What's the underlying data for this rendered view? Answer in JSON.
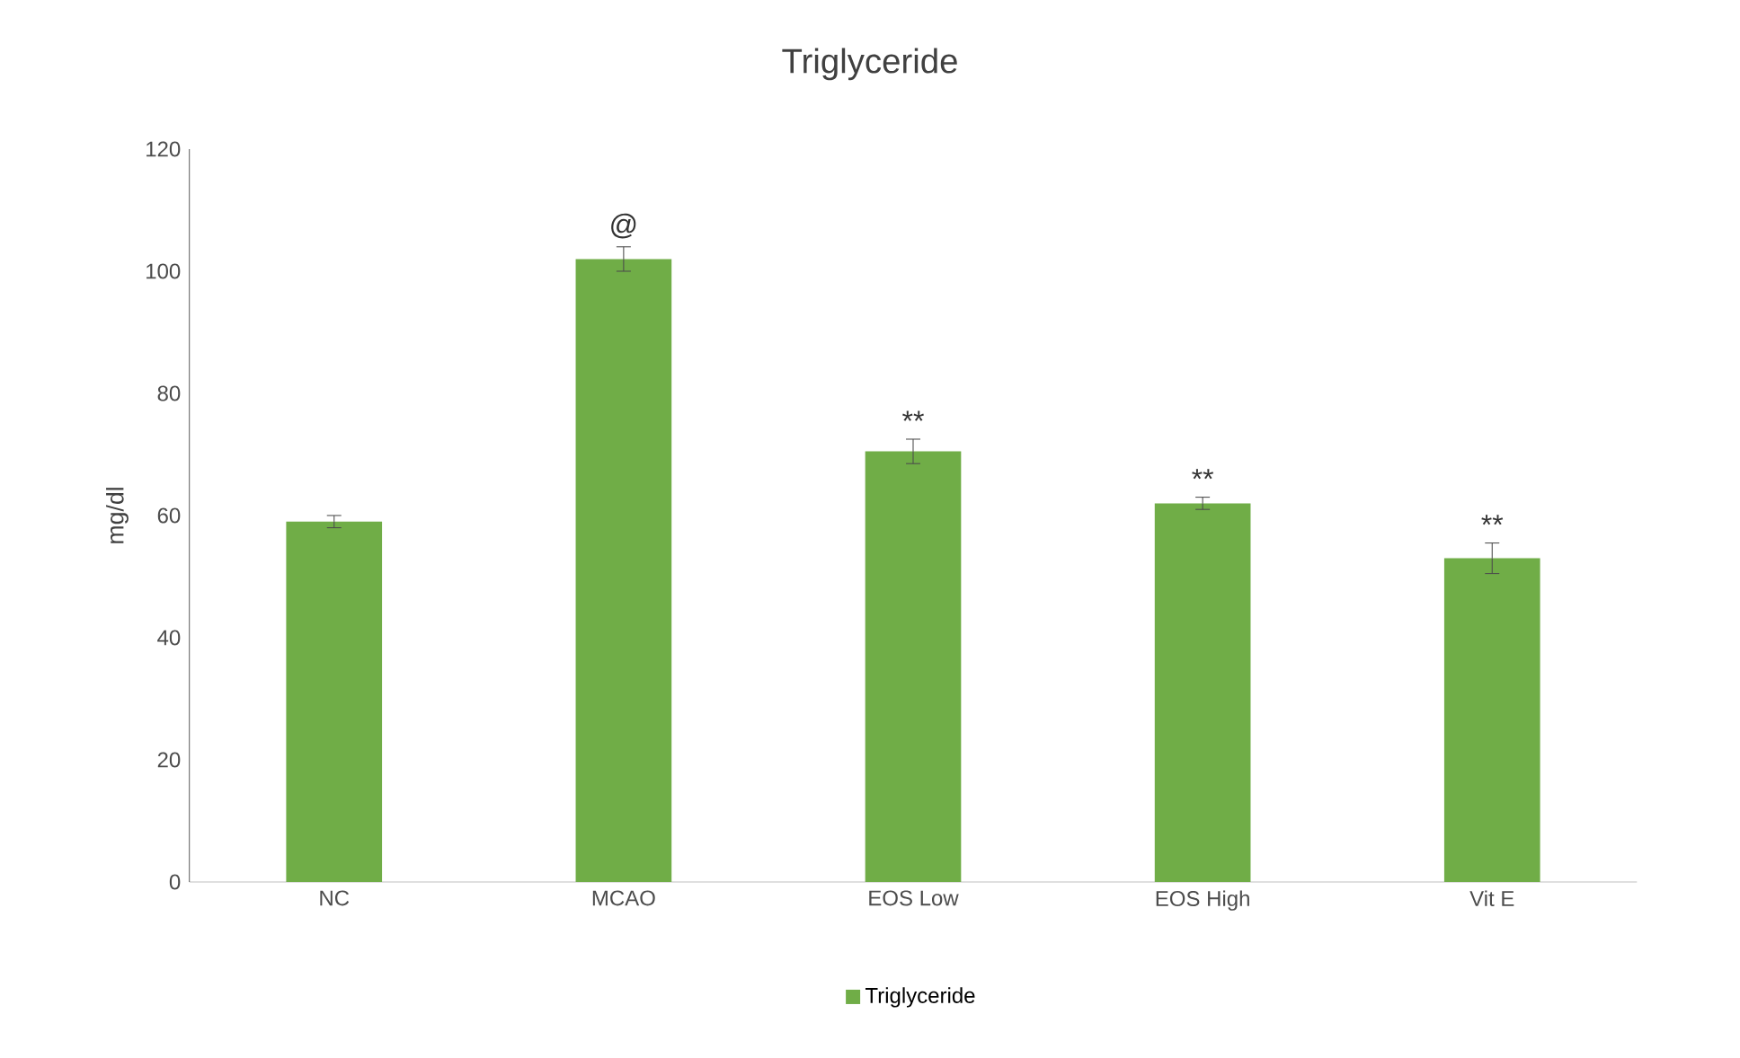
{
  "chart_data": {
    "type": "bar",
    "title": "Triglyceride",
    "ylabel": "mg/dl",
    "categories": [
      "NC",
      "MCAO",
      "EOS Low",
      "EOS High",
      "Vit E"
    ],
    "series": [
      {
        "name": "Triglyceride",
        "color": "#70ad47",
        "values": [
          59,
          102,
          70.5,
          62,
          53
        ],
        "errors": [
          1,
          2,
          2,
          1,
          2.5
        ]
      }
    ],
    "ylim": [
      0,
      120
    ],
    "yticks": [
      0,
      20,
      40,
      60,
      80,
      100,
      120
    ],
    "grid": false,
    "legend": "bottom",
    "annotations": [
      "@",
      "**",
      "**",
      "**"
    ]
  }
}
